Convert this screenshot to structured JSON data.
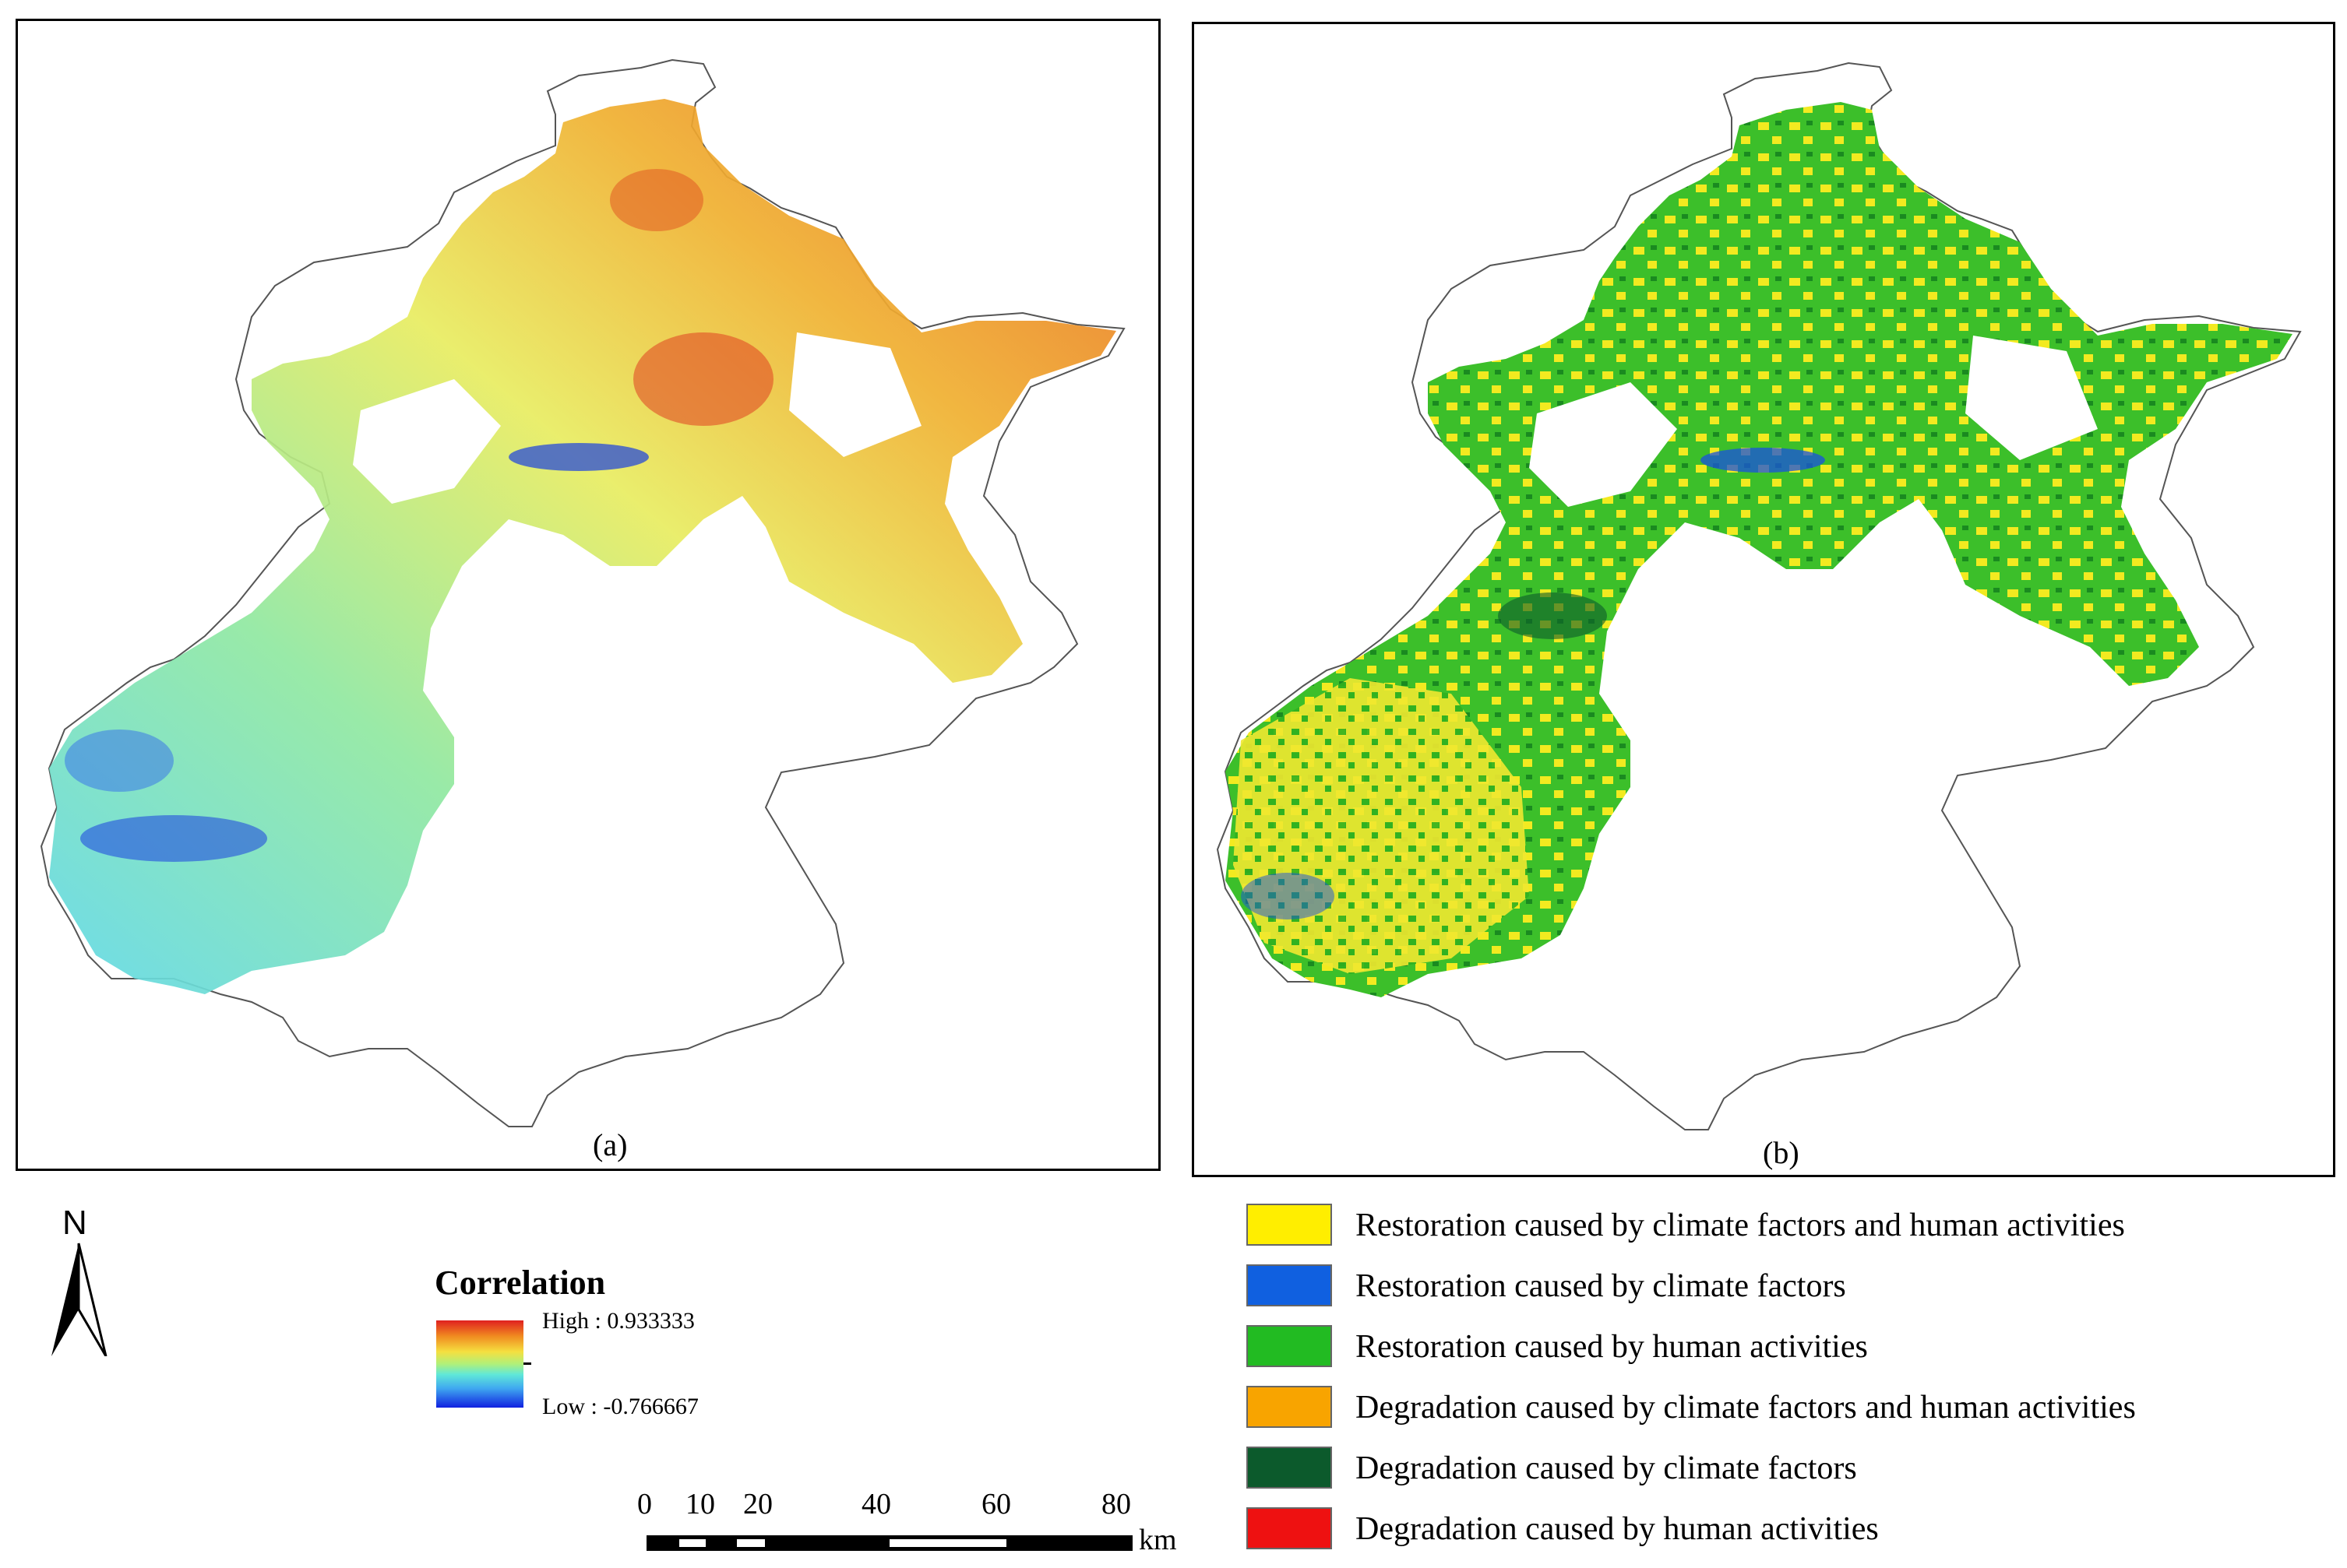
{
  "panels": {
    "a": {
      "label": "(a)"
    },
    "b": {
      "label": "(b)"
    }
  },
  "north_arrow": {
    "letter": "N"
  },
  "correlation_legend": {
    "title": "Correlation",
    "high_label": "High : 0.933333",
    "low_label": "Low : -0.766667",
    "high_value": 0.933333,
    "low_value": -0.766667,
    "ramp_colors": [
      "#e02020",
      "#f08a20",
      "#f5e040",
      "#b0f07a",
      "#60e8d8",
      "#3fa8f0",
      "#1020e0"
    ]
  },
  "scale_bar": {
    "ticks": [
      "0",
      "10",
      "20",
      "40",
      "60",
      "80"
    ],
    "unit": "km"
  },
  "category_legend": [
    {
      "label": "Restoration caused by climate factors and human activities",
      "color": "#ffee00"
    },
    {
      "label": "Restoration caused by climate factors",
      "color": "#1060e0"
    },
    {
      "label": "Restoration caused by  human activities",
      "color": "#22bb22"
    },
    {
      "label": "Degradation caused by climate factors and human activities",
      "color": "#f8a400"
    },
    {
      "label": "Degradation caused by climate factors",
      "color": "#0c5a2c"
    },
    {
      "label": "Degradation caused by  human activities",
      "color": "#ee1111"
    }
  ]
}
